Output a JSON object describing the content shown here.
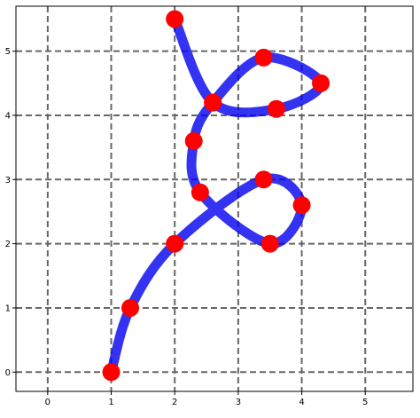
{
  "chart_data": {
    "type": "line",
    "title": "",
    "xlabel": "",
    "ylabel": "",
    "xlim": [
      -0.5,
      5.75
    ],
    "ylim": [
      -0.3,
      5.7
    ],
    "xticks": [
      0,
      1,
      2,
      3,
      4,
      5
    ],
    "yticks": [
      0,
      1,
      2,
      3,
      4,
      5
    ],
    "grid": true,
    "colors": {
      "line": "#0000ee",
      "points": "#ff0000",
      "grid": "#666666"
    },
    "points": [
      {
        "x": 1.0,
        "y": 0.0
      },
      {
        "x": 1.3,
        "y": 1.0
      },
      {
        "x": 2.0,
        "y": 2.0
      },
      {
        "x": 3.4,
        "y": 3.0
      },
      {
        "x": 4.0,
        "y": 2.6
      },
      {
        "x": 3.5,
        "y": 2.0
      },
      {
        "x": 2.4,
        "y": 2.8
      },
      {
        "x": 2.3,
        "y": 3.6
      },
      {
        "x": 2.6,
        "y": 4.2
      },
      {
        "x": 3.4,
        "y": 4.9
      },
      {
        "x": 4.3,
        "y": 4.5
      },
      {
        "x": 3.6,
        "y": 4.1
      },
      {
        "x": 2.6,
        "y": 4.2
      },
      {
        "x": 2.0,
        "y": 5.5
      }
    ]
  }
}
